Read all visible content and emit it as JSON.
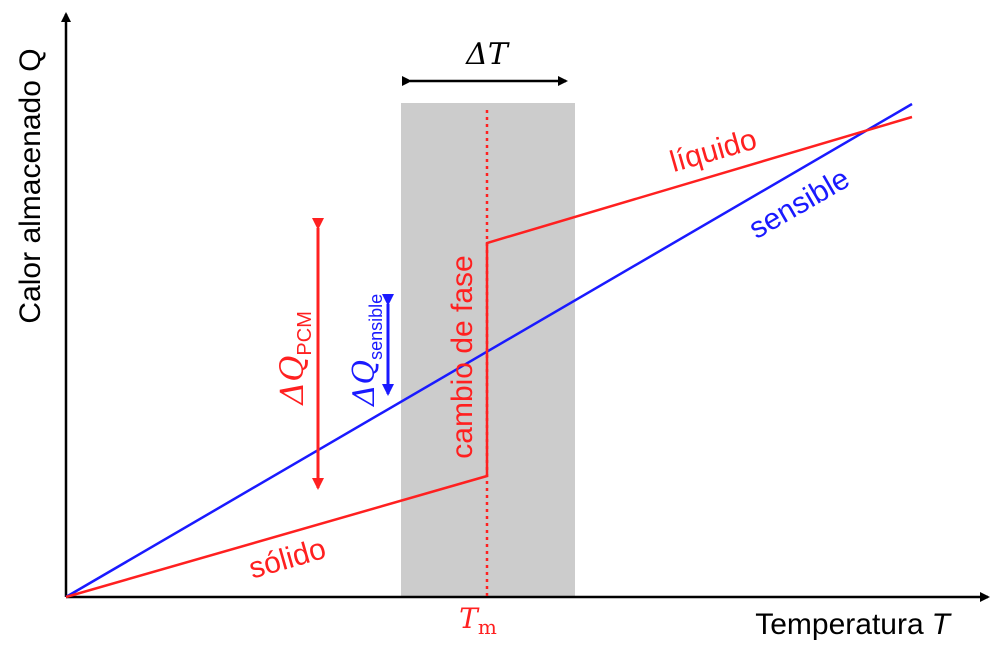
{
  "axes": {
    "y_label": "Calor almacenado Q",
    "x_label": "Temperatura",
    "x_symbol": "T"
  },
  "labels": {
    "delta_t_symbol": "ΔT",
    "tm_main": "T",
    "tm_sub": "m",
    "liquid": "líquido",
    "solid": "sólido",
    "sensible": "sensible",
    "phase_change": "cambio de fase",
    "dq_pcm_main": "ΔQ",
    "dq_pcm_sub": "PCM",
    "dq_sensible_main": "ΔQ",
    "dq_sensible_sub": "sensible"
  },
  "colors": {
    "pcm": "#ff2020",
    "sensible": "#1a1aff",
    "band": "#cccccc",
    "axis": "#000000"
  }
}
